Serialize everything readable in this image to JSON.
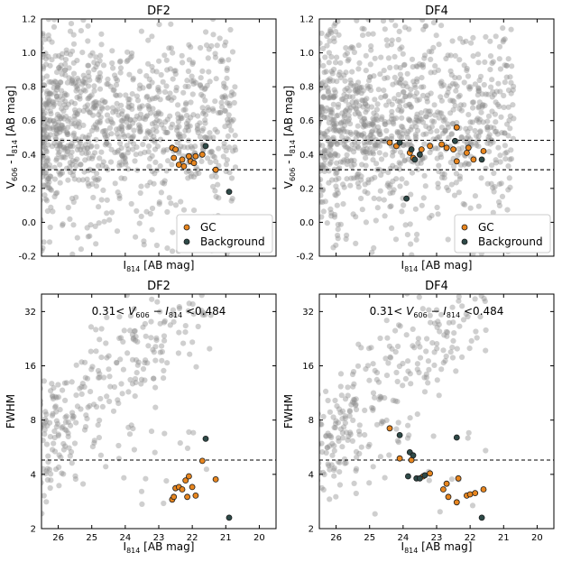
{
  "figure": {
    "panels": [
      "df2_color",
      "df4_color",
      "df2_fwhm",
      "df4_fwhm"
    ]
  },
  "colors": {
    "field": "#8c8c8c",
    "gc": "#e8861f",
    "background": "#2e4a48",
    "edge": "#1a1a1a"
  },
  "chart_data": [
    {
      "id": "df2_color",
      "type": "scatter",
      "title": "DF2",
      "xlabel": "I814 [AB mag]",
      "ylabel": "V606 - I814 [AB mag]",
      "xlim": [
        26.5,
        19.5
      ],
      "ylim": [
        -0.2,
        1.2
      ],
      "xticks": [],
      "yticks": [
        "-0.2",
        "0.0",
        "0.2",
        "0.4",
        "0.6",
        "0.8",
        "1.0",
        "1.2"
      ],
      "hlines": [
        0.31,
        0.484
      ],
      "legend": {
        "position": "bottom-right",
        "entries": [
          "GC",
          "Background"
        ]
      },
      "field_seed": 11,
      "series": [
        {
          "name": "GC",
          "points": [
            [
              22.6,
              0.44
            ],
            [
              22.5,
              0.43
            ],
            [
              22.55,
              0.38
            ],
            [
              22.4,
              0.34
            ],
            [
              22.3,
              0.37
            ],
            [
              22.25,
              0.33
            ],
            [
              22.1,
              0.39
            ],
            [
              22.05,
              0.36
            ],
            [
              21.95,
              0.35
            ],
            [
              21.9,
              0.39
            ],
            [
              21.7,
              0.4
            ],
            [
              21.3,
              0.31
            ]
          ]
        },
        {
          "name": "Background",
          "points": [
            [
              21.6,
              0.45
            ],
            [
              20.9,
              0.18
            ]
          ]
        }
      ]
    },
    {
      "id": "df4_color",
      "type": "scatter",
      "title": "DF4",
      "xlabel": "I814 [AB mag]",
      "ylabel": "V606 - I814 [AB mag]",
      "xlim": [
        26.5,
        19.5
      ],
      "ylim": [
        -0.2,
        1.2
      ],
      "xticks": [],
      "yticks": [
        "-0.2",
        "0.0",
        "0.2",
        "0.4",
        "0.6",
        "0.8",
        "1.0",
        "1.2"
      ],
      "hlines": [
        0.31,
        0.484
      ],
      "legend": {
        "position": "bottom-right",
        "entries": [
          "GC",
          "Background"
        ]
      },
      "field_seed": 29,
      "series": [
        {
          "name": "GC",
          "points": [
            [
              24.4,
              0.47
            ],
            [
              24.2,
              0.45
            ],
            [
              23.8,
              0.41
            ],
            [
              23.7,
              0.38
            ],
            [
              23.2,
              0.45
            ],
            [
              22.7,
              0.44
            ],
            [
              22.5,
              0.43
            ],
            [
              22.4,
              0.56
            ],
            [
              22.4,
              0.36
            ],
            [
              22.1,
              0.41
            ],
            [
              22.05,
              0.44
            ],
            [
              21.9,
              0.37
            ],
            [
              21.6,
              0.42
            ],
            [
              23.45,
              0.43
            ],
            [
              22.85,
              0.46
            ]
          ]
        },
        {
          "name": "Background",
          "points": [
            [
              24.1,
              0.47
            ],
            [
              23.75,
              0.43
            ],
            [
              23.65,
              0.37
            ],
            [
              23.5,
              0.4
            ],
            [
              22.45,
              0.48
            ],
            [
              21.65,
              0.37
            ],
            [
              23.9,
              0.14
            ]
          ]
        }
      ]
    },
    {
      "id": "df2_fwhm",
      "type": "scatter",
      "title": "DF2",
      "annotation": "0.31< V606 − I814 <0.484",
      "xlabel": "I814 [AB mag]",
      "ylabel": "FWHM",
      "xscale": "linear",
      "yscale": "log2",
      "xlim": [
        26.5,
        19.5
      ],
      "ylim": [
        2,
        40
      ],
      "xticks": [
        "26",
        "25",
        "24",
        "23",
        "22",
        "21",
        "20"
      ],
      "yticks": [
        "2",
        "4",
        "8",
        "16",
        "32"
      ],
      "hlines": [
        4.8
      ],
      "field_seed": 47,
      "series": [
        {
          "name": "GC",
          "points": [
            [
              22.6,
              2.9
            ],
            [
              22.55,
              3.0
            ],
            [
              22.5,
              3.35
            ],
            [
              22.4,
              3.4
            ],
            [
              22.3,
              3.3
            ],
            [
              22.2,
              3.7
            ],
            [
              22.15,
              3.0
            ],
            [
              22.1,
              3.9
            ],
            [
              22.0,
              3.4
            ],
            [
              21.9,
              3.05
            ],
            [
              21.7,
              4.75
            ],
            [
              21.3,
              3.75
            ]
          ]
        },
        {
          "name": "Background",
          "points": [
            [
              21.6,
              6.3
            ],
            [
              20.9,
              2.3
            ]
          ]
        }
      ]
    },
    {
      "id": "df4_fwhm",
      "type": "scatter",
      "title": "DF4",
      "annotation": "0.31< V606 − I814 <0.484",
      "xlabel": "I814 [AB mag]",
      "ylabel": "FWHM",
      "xscale": "linear",
      "yscale": "log2",
      "xlim": [
        26.5,
        19.5
      ],
      "ylim": [
        2,
        40
      ],
      "xticks": [
        "26",
        "25",
        "24",
        "23",
        "22",
        "21",
        "20"
      ],
      "yticks": [
        "2",
        "4",
        "8",
        "16",
        "32"
      ],
      "hlines": [
        4.8
      ],
      "field_seed": 83,
      "series": [
        {
          "name": "GC",
          "points": [
            [
              24.4,
              7.2
            ],
            [
              24.1,
              4.9
            ],
            [
              23.75,
              4.8
            ],
            [
              23.4,
              3.9
            ],
            [
              23.2,
              4.05
            ],
            [
              22.7,
              3.55
            ],
            [
              22.65,
              3.0
            ],
            [
              22.4,
              2.8
            ],
            [
              22.35,
              3.8
            ],
            [
              22.1,
              3.05
            ],
            [
              22.0,
              3.1
            ],
            [
              21.85,
              3.15
            ],
            [
              21.6,
              3.3
            ],
            [
              22.8,
              3.3
            ]
          ]
        },
        {
          "name": "Background",
          "points": [
            [
              24.1,
              6.6
            ],
            [
              23.8,
              5.3
            ],
            [
              23.7,
              5.1
            ],
            [
              23.6,
              3.8
            ],
            [
              23.85,
              3.9
            ],
            [
              23.5,
              3.8
            ],
            [
              23.35,
              3.95
            ],
            [
              22.4,
              6.4
            ],
            [
              21.65,
              2.3
            ]
          ]
        }
      ]
    }
  ]
}
